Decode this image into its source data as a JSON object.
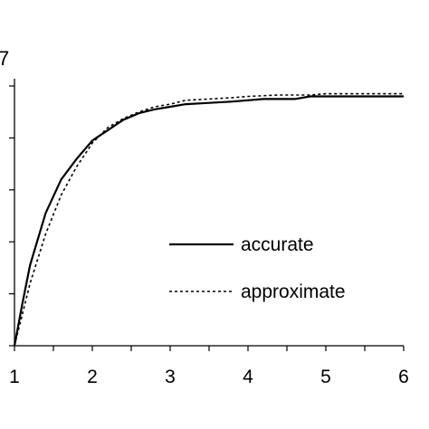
{
  "chart_data": {
    "type": "line",
    "title": "",
    "xlabel": "",
    "ylabel": "7",
    "xlim": [
      1,
      6
    ],
    "ylim": [
      0,
      1
    ],
    "xticks": [
      1,
      2,
      3,
      4,
      5,
      6
    ],
    "xtick_labels": [
      "1",
      "2",
      "3",
      "4",
      "5",
      "6"
    ],
    "yticks_count": 6,
    "grid": false,
    "legend_position": "right",
    "series": [
      {
        "name": "accurate",
        "style": "solid",
        "color": "#000000",
        "x": [
          1.0,
          1.1,
          1.2,
          1.4,
          1.6,
          1.8,
          2.0,
          2.2,
          2.4,
          2.6,
          2.8,
          3.0,
          3.2,
          3.5,
          3.8,
          4.0,
          4.2,
          4.6,
          4.8,
          5.0,
          5.5,
          6.0
        ],
        "y": [
          0.0,
          0.16,
          0.31,
          0.51,
          0.64,
          0.72,
          0.79,
          0.83,
          0.87,
          0.895,
          0.91,
          0.92,
          0.93,
          0.935,
          0.94,
          0.945,
          0.95,
          0.95,
          0.96,
          0.96,
          0.96,
          0.96
        ]
      },
      {
        "name": "approximate",
        "style": "dotted",
        "color": "#000000",
        "x": [
          1.0,
          1.1,
          1.2,
          1.4,
          1.6,
          1.8,
          2.0,
          2.2,
          2.4,
          2.6,
          2.8,
          3.0,
          3.2,
          3.5,
          3.8,
          4.0,
          4.4,
          4.8,
          5.0,
          5.5,
          6.0
        ],
        "y": [
          0.0,
          0.12,
          0.24,
          0.43,
          0.58,
          0.69,
          0.78,
          0.84,
          0.875,
          0.9,
          0.92,
          0.93,
          0.945,
          0.95,
          0.955,
          0.96,
          0.965,
          0.965,
          0.97,
          0.97,
          0.97
        ]
      }
    ]
  }
}
